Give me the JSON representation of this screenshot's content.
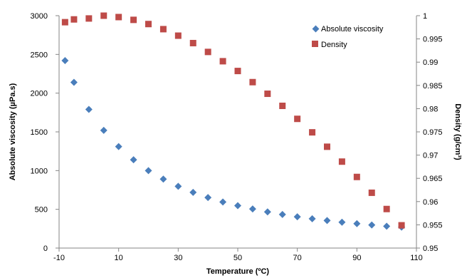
{
  "chart_data": {
    "type": "scatter",
    "x_axis": {
      "label": "Temperature (ºC)",
      "range": [
        -10,
        110
      ],
      "ticks": [
        -10,
        10,
        30,
        50,
        70,
        90,
        110
      ]
    },
    "y_axis_left": {
      "label": "Absolute viscosity (µPa.s)",
      "range": [
        0,
        3000
      ],
      "ticks": [
        0,
        500,
        1000,
        1500,
        2000,
        2500,
        3000
      ]
    },
    "y_axis_right": {
      "label": "Density (g/cm³)",
      "range": [
        0.95,
        1
      ],
      "ticks": [
        "0.95",
        "0.955",
        "0.96",
        "0.965",
        "0.97",
        "0.975",
        "0.98",
        "0.985",
        "0.99",
        "0.995",
        "1"
      ]
    },
    "legend_position": "top-right",
    "grid": false,
    "series": [
      {
        "name": "Absolute viscosity",
        "axis": "left",
        "marker": "diamond",
        "color": "#4a7ebb",
        "x": [
          -8,
          -5,
          0,
          5,
          10,
          15,
          20,
          25,
          30,
          35,
          40,
          45,
          50,
          55,
          60,
          65,
          70,
          75,
          80,
          85,
          90,
          95,
          100,
          105
        ],
        "y": [
          2420,
          2140,
          1790,
          1520,
          1310,
          1140,
          1000,
          890,
          797,
          719,
          652,
          595,
          547,
          505,
          467,
          434,
          404,
          378,
          355,
          334,
          315,
          298,
          282,
          270
        ]
      },
      {
        "name": "Density",
        "axis": "right",
        "marker": "square",
        "color": "#be4b48",
        "x": [
          -8,
          -5,
          0,
          5,
          10,
          15,
          20,
          25,
          30,
          35,
          40,
          45,
          50,
          55,
          60,
          65,
          70,
          75,
          80,
          85,
          90,
          95,
          100,
          105
        ],
        "y": [
          0.9986,
          0.9992,
          0.9994,
          1.0,
          0.9997,
          0.9991,
          0.9982,
          0.9971,
          0.9957,
          0.9941,
          0.9922,
          0.9902,
          0.9881,
          0.9857,
          0.9832,
          0.9806,
          0.9778,
          0.9749,
          0.9718,
          0.9686,
          0.9653,
          0.9619,
          0.9584,
          0.9549
        ]
      }
    ]
  }
}
